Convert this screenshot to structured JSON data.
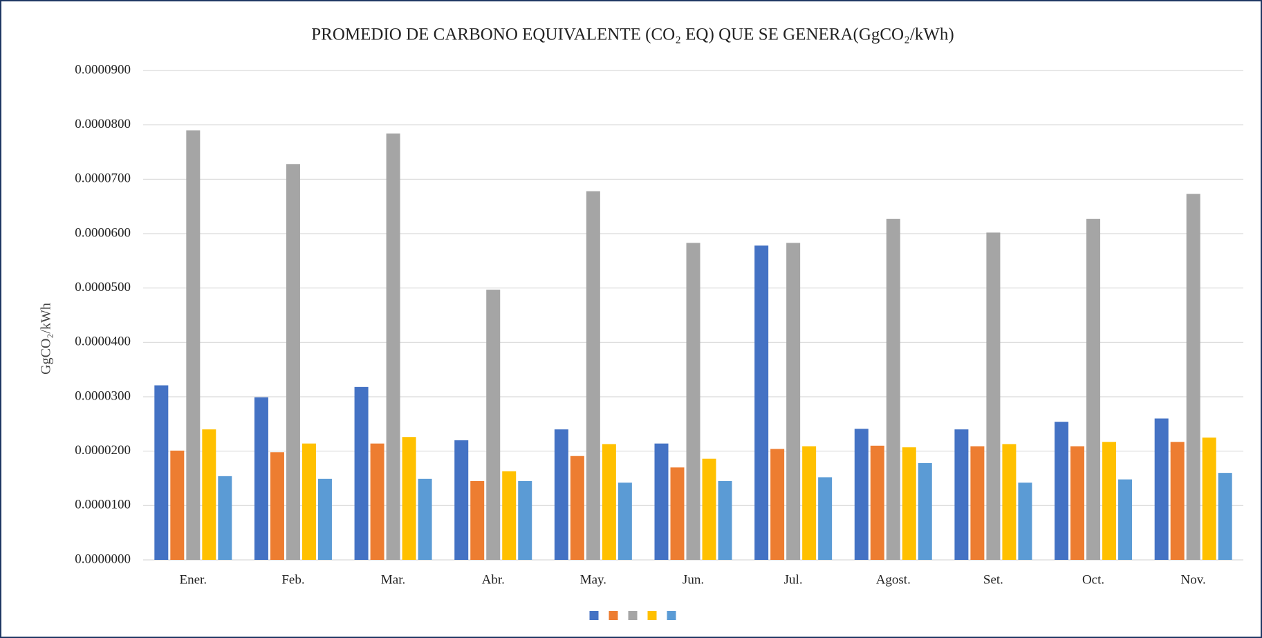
{
  "chart_data": {
    "type": "bar",
    "title": "PROMEDIO DE CARBONO EQUIVALENTE (CO₂ EQ) QUE SE GENERA(GgCO₂/kWh)",
    "y_label": "GgCO₂/kWh",
    "categories": [
      "Ener.",
      "Feb.",
      "Mar.",
      "Abr.",
      "May.",
      "Jun.",
      "Jul.",
      "Agost.",
      "Set.",
      "Oct.",
      "Nov."
    ],
    "series": [
      {
        "color": "#4472c4",
        "values": [
          3.21e-05,
          2.99e-05,
          3.18e-05,
          2.2e-05,
          2.4e-05,
          2.14e-05,
          5.78e-05,
          2.41e-05,
          2.4e-05,
          2.54e-05,
          2.6e-05
        ]
      },
      {
        "color": "#ed7d31",
        "values": [
          2.01e-05,
          1.98e-05,
          2.14e-05,
          1.45e-05,
          1.91e-05,
          1.7e-05,
          2.04e-05,
          2.1e-05,
          2.09e-05,
          2.09e-05,
          2.17e-05
        ]
      },
      {
        "color": "#a5a5a5",
        "values": [
          7.9e-05,
          7.28e-05,
          7.84e-05,
          4.97e-05,
          6.78e-05,
          5.83e-05,
          5.83e-05,
          6.27e-05,
          6.02e-05,
          6.27e-05,
          6.73e-05
        ]
      },
      {
        "color": "#ffc000",
        "values": [
          2.4e-05,
          2.14e-05,
          2.26e-05,
          1.63e-05,
          2.13e-05,
          1.86e-05,
          2.09e-05,
          2.07e-05,
          2.13e-05,
          2.17e-05,
          2.25e-05
        ]
      },
      {
        "color": "#5b9bd5",
        "values": [
          1.54e-05,
          1.49e-05,
          1.49e-05,
          1.45e-05,
          1.42e-05,
          1.45e-05,
          1.52e-05,
          1.78e-05,
          1.42e-05,
          1.48e-05,
          1.6e-05
        ]
      }
    ],
    "ylim": [
      0,
      9e-05
    ],
    "yticks": [
      {
        "value": 0,
        "label": "0.0000000"
      },
      {
        "value": 1e-05,
        "label": "0.0000100"
      },
      {
        "value": 2e-05,
        "label": "0.0000200"
      },
      {
        "value": 3e-05,
        "label": "0.0000300"
      },
      {
        "value": 4e-05,
        "label": "0.0000400"
      },
      {
        "value": 5e-05,
        "label": "0.0000500"
      },
      {
        "value": 6e-05,
        "label": "0.0000600"
      },
      {
        "value": 7e-05,
        "label": "0.0000700"
      },
      {
        "value": 8e-05,
        "label": "0.0000800"
      },
      {
        "value": 9e-05,
        "label": "0.0000900"
      }
    ],
    "grid": true,
    "legend": "bottom"
  }
}
